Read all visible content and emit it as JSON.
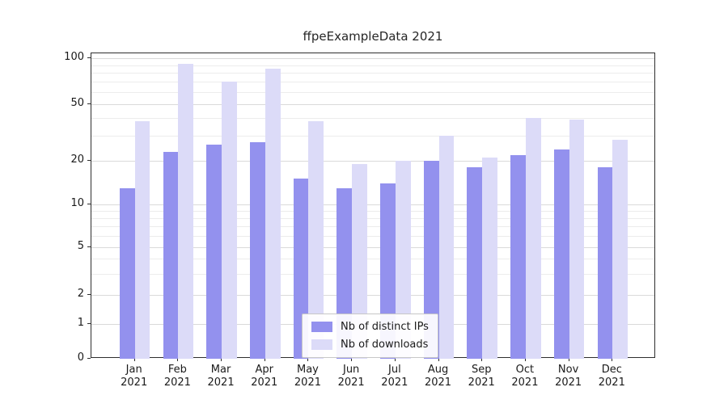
{
  "chart_data": {
    "type": "bar",
    "title": "ffpeExampleData 2021",
    "scale": "log-like y axis with ticks 0,1,2,5,10,20,50,100",
    "categories": [
      "Jan",
      "Feb",
      "Mar",
      "Apr",
      "May",
      "Jun",
      "Jul",
      "Aug",
      "Sep",
      "Oct",
      "Nov",
      "Dec"
    ],
    "year": "2021",
    "series": [
      {
        "name": "Nb of distinct IPs",
        "color": "#9391ee",
        "values": [
          13,
          23,
          26,
          27,
          15,
          13,
          14,
          20,
          18,
          22,
          24,
          18
        ]
      },
      {
        "name": "Nb of downloads",
        "color": "#dcdbf8",
        "values": [
          38,
          92,
          70,
          85,
          38,
          19,
          20,
          30,
          21,
          40,
          39,
          28
        ]
      }
    ],
    "y_ticks": [
      0,
      1,
      2,
      5,
      10,
      20,
      50,
      100
    ],
    "y_tick_labels": [
      "0",
      "1",
      "2",
      "5",
      "10",
      "20",
      "50",
      "100"
    ],
    "ylim": [
      0,
      100
    ],
    "xlabel": "",
    "ylabel": "",
    "grid": "horizontal light-gray major and minor lines",
    "legend_position": "lower center inside plot"
  }
}
